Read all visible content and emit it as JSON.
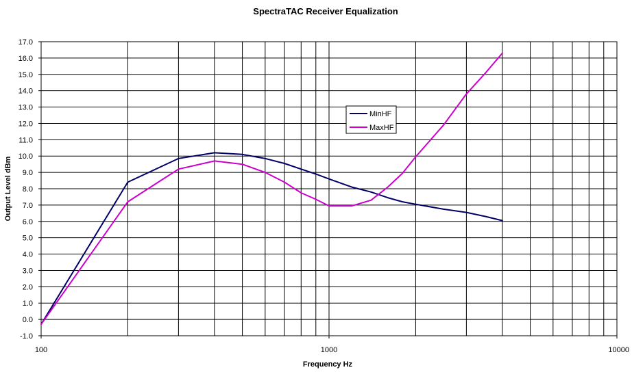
{
  "chart_data": {
    "type": "line",
    "title": "SpectraTAC Receiver Equalization",
    "xlabel": "Frequency Hz",
    "ylabel": "Output Level dBm",
    "xscale": "log",
    "xlim": [
      100,
      10000
    ],
    "ylim": [
      -1.0,
      17.0
    ],
    "x_ticks": [
      "100",
      "1000",
      "10000"
    ],
    "y_ticks": [
      "-1.0",
      "0.0",
      "1.0",
      "2.0",
      "3.0",
      "4.0",
      "5.0",
      "6.0",
      "7.0",
      "8.0",
      "9.0",
      "10.0",
      "11.0",
      "12.0",
      "13.0",
      "14.0",
      "15.0",
      "16.0",
      "17.0"
    ],
    "grid": true,
    "legend_position": "center-right",
    "x": [
      100,
      200,
      300,
      400,
      500,
      600,
      700,
      800,
      900,
      1000,
      1200,
      1400,
      1600,
      1800,
      2000,
      2500,
      3000,
      3500,
      4000
    ],
    "series": [
      {
        "name": "MinHF",
        "color": "#000066",
        "values": [
          -0.3,
          8.4,
          9.85,
          10.2,
          10.1,
          9.85,
          9.55,
          9.2,
          8.9,
          8.6,
          8.1,
          7.8,
          7.45,
          7.2,
          7.05,
          6.75,
          6.55,
          6.3,
          6.05
        ]
      },
      {
        "name": "MaxHF",
        "color": "#cc00cc",
        "values": [
          -0.3,
          7.2,
          9.2,
          9.7,
          9.5,
          9.0,
          8.4,
          7.75,
          7.35,
          6.95,
          6.95,
          7.3,
          8.1,
          8.95,
          9.95,
          11.9,
          13.8,
          15.1,
          16.3
        ]
      }
    ]
  }
}
